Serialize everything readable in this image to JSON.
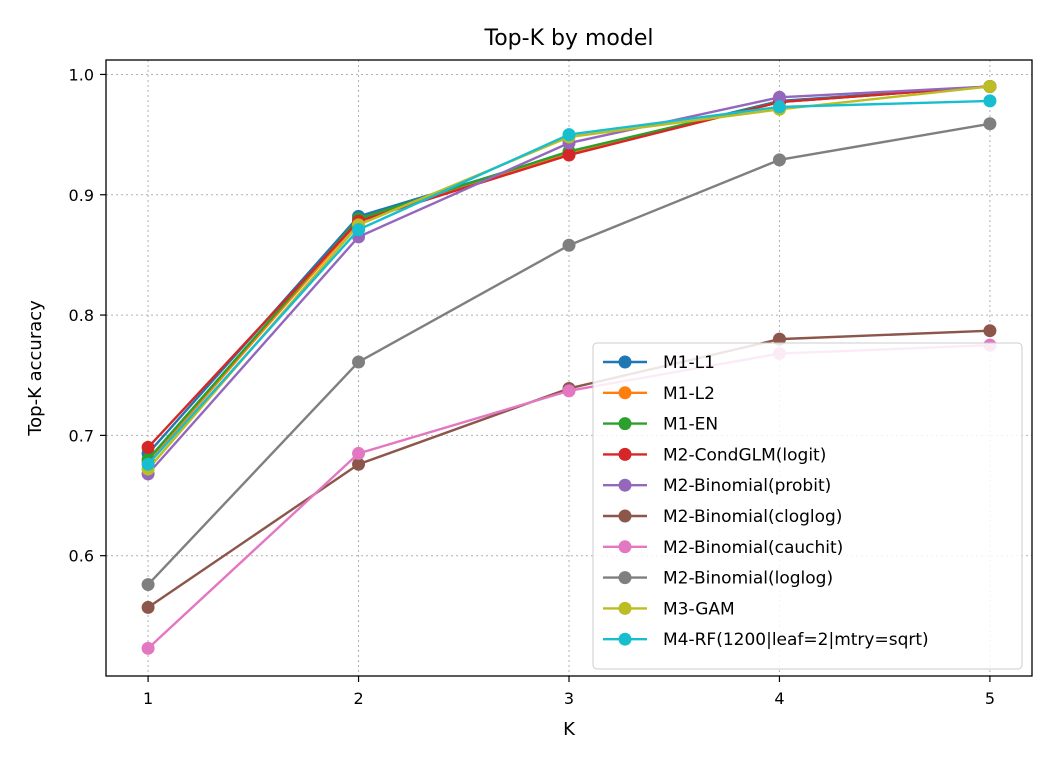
{
  "chart_data": {
    "type": "line",
    "title": "Top-K by model",
    "xlabel": "K",
    "ylabel": "Top-K accuracy",
    "x": [
      1,
      2,
      3,
      4,
      5
    ],
    "xlim": [
      0.8,
      5.2
    ],
    "ylim": [
      0.5,
      1.012
    ],
    "xticks": [
      1,
      2,
      3,
      4,
      5
    ],
    "yticks": [
      0.6,
      0.7,
      0.8,
      0.9,
      1.0
    ],
    "ytick_labels": [
      "0.6",
      "0.7",
      "0.8",
      "0.9",
      "1.0"
    ],
    "grid": true,
    "legend_position": "lower-right",
    "series": [
      {
        "name": "M1-L1",
        "color": "#1f77b4",
        "values": [
          0.685,
          0.882,
          0.935,
          0.978,
          0.99
        ]
      },
      {
        "name": "M1-L2",
        "color": "#ff7f0e",
        "values": [
          0.678,
          0.878,
          0.934,
          0.977,
          0.99
        ]
      },
      {
        "name": "M1-EN",
        "color": "#2ca02c",
        "values": [
          0.68,
          0.88,
          0.936,
          0.977,
          0.99
        ]
      },
      {
        "name": "M2-CondGLM(logit)",
        "color": "#d62728",
        "values": [
          0.69,
          0.878,
          0.933,
          0.977,
          0.99
        ]
      },
      {
        "name": "M2-Binomial(probit)",
        "color": "#9467bd",
        "values": [
          0.668,
          0.865,
          0.943,
          0.981,
          0.99
        ]
      },
      {
        "name": "M2-Binomial(cloglog)",
        "color": "#8c564b",
        "values": [
          0.557,
          0.676,
          0.739,
          0.78,
          0.787
        ]
      },
      {
        "name": "M2-Binomial(cauchit)",
        "color": "#e377c2",
        "values": [
          0.523,
          0.685,
          0.737,
          0.768,
          0.775
        ]
      },
      {
        "name": "M2-Binomial(loglog)",
        "color": "#7f7f7f",
        "values": [
          0.576,
          0.761,
          0.858,
          0.929,
          0.959
        ]
      },
      {
        "name": "M3-GAM",
        "color": "#bcbd22",
        "values": [
          0.672,
          0.875,
          0.948,
          0.971,
          0.99
        ]
      },
      {
        "name": "M4-RF(1200|leaf=2|mtry=sqrt)",
        "color": "#17becf",
        "values": [
          0.676,
          0.871,
          0.95,
          0.973,
          0.978
        ]
      }
    ]
  }
}
